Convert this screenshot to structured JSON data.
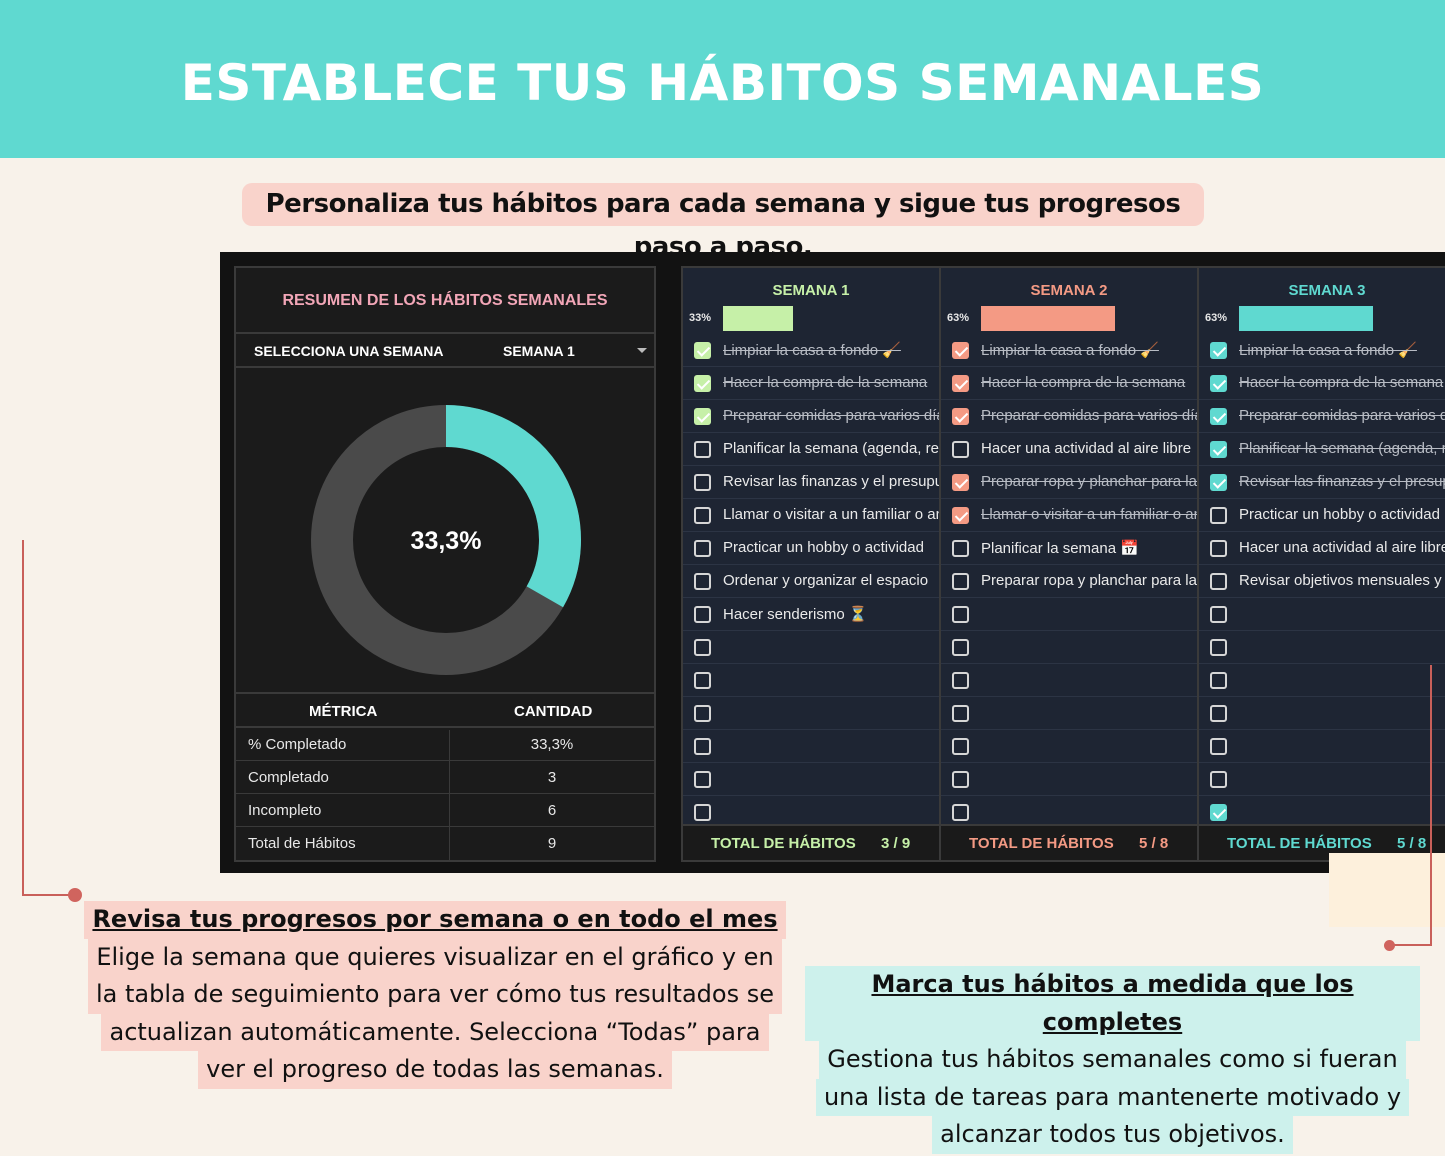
{
  "banner": {
    "title": "ESTABLECE TUS HÁBITOS SEMANALES"
  },
  "subtitle": "Personaliza tus hábitos para cada semana y sigue tus progresos paso a paso.",
  "summary": {
    "title": "RESUMEN DE LOS HÁBITOS SEMANALES",
    "select_label": "SELECCIONA UNA SEMANA",
    "select_value": "SEMANA 1",
    "donut": {
      "label": "33,3%",
      "completed_fraction": 0.333,
      "color_done": "#5fd9d0",
      "color_rest": "#4a4a4a"
    },
    "metrics_header": {
      "metric": "MÉTRICA",
      "amount": "CANTIDAD"
    },
    "metrics": [
      {
        "k": "% Completado",
        "v": "33,3%"
      },
      {
        "k": "Completado",
        "v": "3"
      },
      {
        "k": "Incompleto",
        "v": "6"
      },
      {
        "k": "Total de Hábitos",
        "v": "9"
      }
    ]
  },
  "weeks": [
    {
      "title": "SEMANA 1",
      "pct": "33%",
      "progress": 0.33,
      "color": "#c6f0a8",
      "footer_label": "TOTAL DE HÁBITOS",
      "footer_count": "3 / 9",
      "items": [
        {
          "text": "Limpiar la casa a fondo 🧹",
          "done": true
        },
        {
          "text": "Hacer la compra de la semana",
          "done": true
        },
        {
          "text": "Preparar comidas para varios días",
          "done": true
        },
        {
          "text": "Planificar la semana (agenda, reuniones)",
          "done": false
        },
        {
          "text": "Revisar las finanzas y el presupuesto",
          "done": false
        },
        {
          "text": "Llamar o visitar a un familiar o amigo",
          "done": false
        },
        {
          "text": "Practicar un hobby o actividad",
          "done": false
        },
        {
          "text": "Ordenar y organizar el espacio",
          "done": false
        },
        {
          "text": "Hacer senderismo ⏳",
          "done": false
        },
        {
          "text": "",
          "done": false
        },
        {
          "text": "",
          "done": false
        },
        {
          "text": "",
          "done": false
        },
        {
          "text": "",
          "done": false
        },
        {
          "text": "",
          "done": false
        },
        {
          "text": "",
          "done": false
        }
      ]
    },
    {
      "title": "SEMANA 2",
      "pct": "63%",
      "progress": 0.63,
      "color": "#f49a84",
      "footer_label": "TOTAL DE HÁBITOS",
      "footer_count": "5 / 8",
      "items": [
        {
          "text": "Limpiar la casa a fondo 🧹",
          "done": true
        },
        {
          "text": "Hacer la compra de la semana",
          "done": true
        },
        {
          "text": "Preparar comidas para varios días",
          "done": true
        },
        {
          "text": "Hacer una actividad al aire libre",
          "done": false
        },
        {
          "text": "Preparar ropa y planchar para la semana",
          "done": true
        },
        {
          "text": "Llamar o visitar a un familiar o amigo",
          "done": true
        },
        {
          "text": "Planificar la semana 📅",
          "done": false
        },
        {
          "text": "Preparar ropa y planchar para la semana",
          "done": false
        },
        {
          "text": "",
          "done": false
        },
        {
          "text": "",
          "done": false
        },
        {
          "text": "",
          "done": false
        },
        {
          "text": "",
          "done": false
        },
        {
          "text": "",
          "done": false
        },
        {
          "text": "",
          "done": false
        },
        {
          "text": "",
          "done": false
        }
      ]
    },
    {
      "title": "SEMANA 3",
      "pct": "63%",
      "progress": 0.63,
      "color": "#5fd9d0",
      "footer_label": "TOTAL DE HÁBITOS",
      "footer_count": "5 / 8",
      "items": [
        {
          "text": "Limpiar la casa a fondo 🧹",
          "done": true
        },
        {
          "text": "Hacer la compra de la semana",
          "done": true
        },
        {
          "text": "Preparar comidas para varios días",
          "done": true
        },
        {
          "text": "Planificar la semana (agenda, reuniones)",
          "done": true
        },
        {
          "text": "Revisar las finanzas y el presupuesto",
          "done": true
        },
        {
          "text": "Practicar un hobby o actividad",
          "done": false
        },
        {
          "text": "Hacer una actividad al aire libre",
          "done": false
        },
        {
          "text": "Revisar objetivos mensuales y",
          "done": false
        },
        {
          "text": "",
          "done": false
        },
        {
          "text": "",
          "done": false
        },
        {
          "text": "",
          "done": false
        },
        {
          "text": "",
          "done": false
        },
        {
          "text": "",
          "done": false
        },
        {
          "text": "",
          "done": false
        },
        {
          "text": "",
          "done": true
        }
      ]
    }
  ],
  "callout_left": {
    "heading": "Revisa tus progresos por semana o en todo el mes",
    "lines": [
      "Elige la semana que quieres visualizar en el gráfico y en",
      "la tabla de seguimiento para ver cómo tus resultados se",
      "actualizan automáticamente. Selecciona “Todas” para",
      "ver el progreso de todas las semanas."
    ]
  },
  "callout_right": {
    "heading": "Marca tus hábitos a medida que los completes",
    "lines": [
      "Gestiona tus hábitos semanales como si fueran",
      "una lista de tareas para mantenerte motivado y",
      "alcanzar todos tus objetivos."
    ]
  }
}
